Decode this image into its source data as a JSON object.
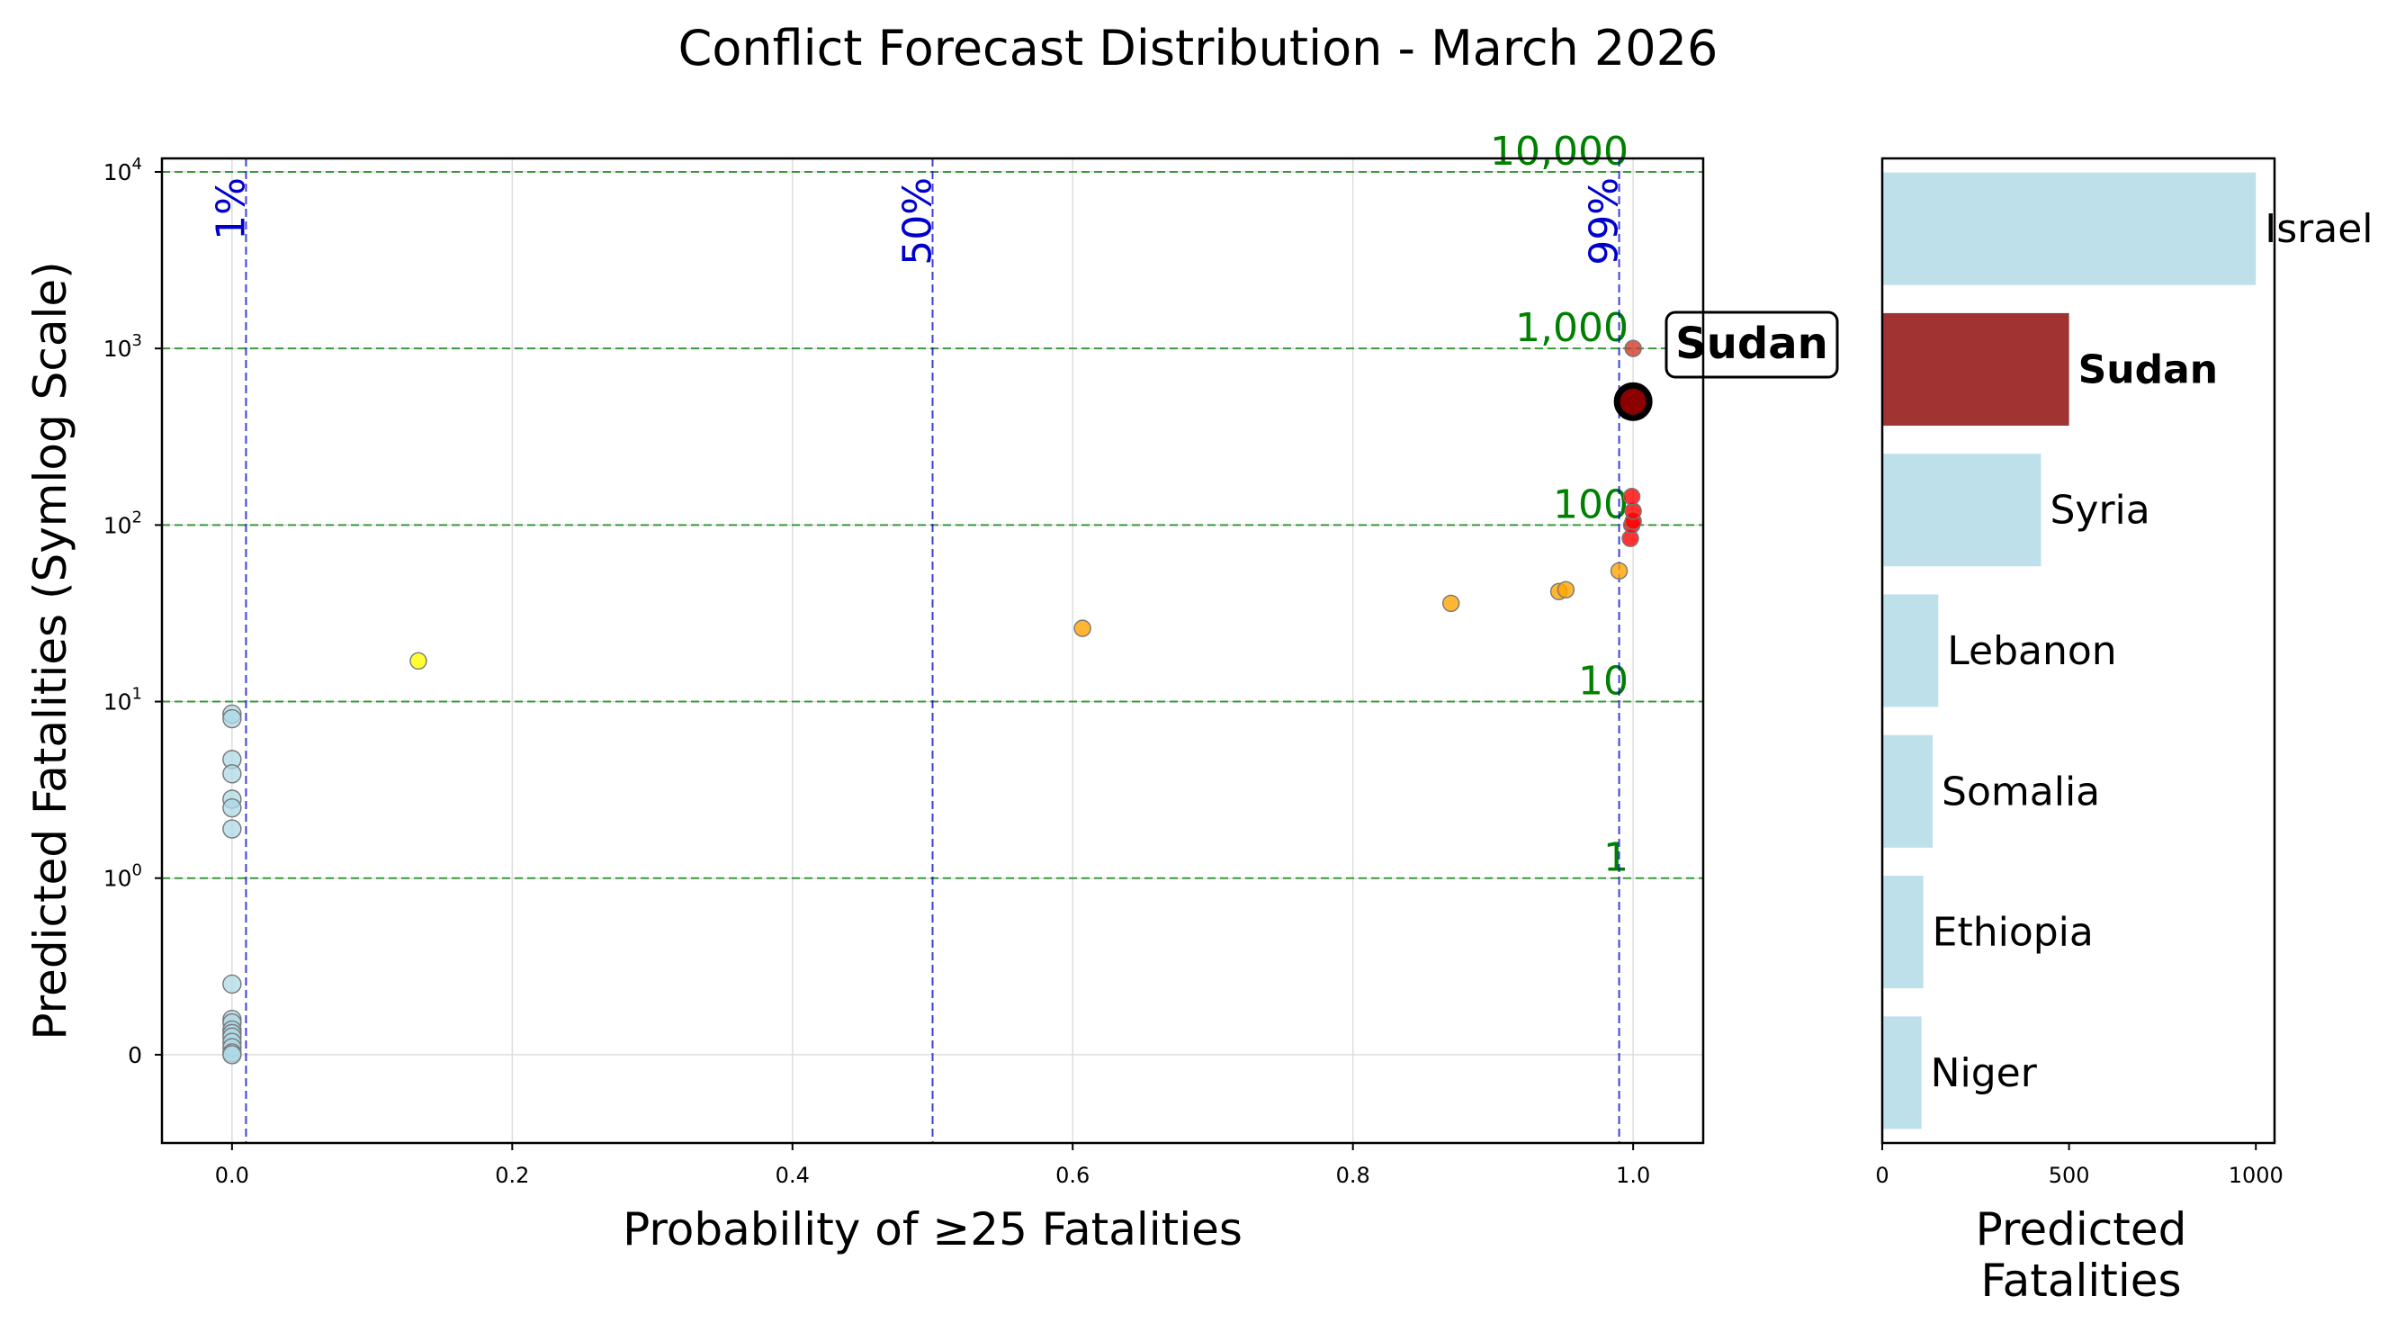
{
  "chart_data": [
    {
      "type": "scatter",
      "title": "Conflict Forecast Distribution - March 2026",
      "xlabel": "Probability of ≥25 Fatalities",
      "ylabel": "Predicted Fatalities (Symlog Scale)",
      "yscale": "symlog",
      "xlim": [
        -0.05,
        1.05
      ],
      "ylim": [
        -0.5,
        10000
      ],
      "x_ticks": [
        0.0,
        0.2,
        0.4,
        0.6,
        0.8,
        1.0
      ],
      "x_tick_labels": [
        "0.0",
        "0.2",
        "0.4",
        "0.6",
        "0.8",
        "1.0"
      ],
      "y_tick_labels": [
        {
          "value": 0,
          "base": "0",
          "exp": ""
        },
        {
          "value": 1,
          "base": "10",
          "exp": "0"
        },
        {
          "value": 10,
          "base": "10",
          "exp": "1"
        },
        {
          "value": 100,
          "base": "10",
          "exp": "2"
        },
        {
          "value": 1000,
          "base": "10",
          "exp": "3"
        },
        {
          "value": 10000,
          "base": "10",
          "exp": "4"
        }
      ],
      "grid": true,
      "vertical_reference_lines": [
        {
          "x": 0.01,
          "label": "1%"
        },
        {
          "x": 0.5,
          "label": "50%"
        },
        {
          "x": 0.99,
          "label": "99%"
        }
      ],
      "horizontal_reference_lines": [
        {
          "y": 1,
          "label": "1"
        },
        {
          "y": 10,
          "label": "10"
        },
        {
          "y": 100,
          "label": "100"
        },
        {
          "y": 1000,
          "label": "1,000"
        },
        {
          "y": 10000,
          "label": "10,000"
        }
      ],
      "points": [
        {
          "x": 0.0,
          "y": 8.5,
          "group": "low"
        },
        {
          "x": 0.0,
          "y": 8.0,
          "group": "low"
        },
        {
          "x": 0.0,
          "y": 4.7,
          "group": "low"
        },
        {
          "x": 0.0,
          "y": 3.9,
          "group": "low"
        },
        {
          "x": 0.0,
          "y": 2.8,
          "group": "low"
        },
        {
          "x": 0.0,
          "y": 2.5,
          "group": "low"
        },
        {
          "x": 0.0,
          "y": 1.9,
          "group": "low"
        },
        {
          "x": 0.0,
          "y": 0.4,
          "group": "low"
        },
        {
          "x": 0.0,
          "y": 0.2,
          "group": "low"
        },
        {
          "x": 0.0,
          "y": 0.18,
          "group": "low"
        },
        {
          "x": 0.0,
          "y": 0.14,
          "group": "low"
        },
        {
          "x": 0.0,
          "y": 0.12,
          "group": "low"
        },
        {
          "x": 0.0,
          "y": 0.1,
          "group": "low"
        },
        {
          "x": 0.0,
          "y": 0.07,
          "group": "low"
        },
        {
          "x": 0.0,
          "y": 0.04,
          "group": "low"
        },
        {
          "x": 0.0,
          "y": 0.01,
          "group": "low"
        },
        {
          "x": 0.0,
          "y": 0.0,
          "group": "low"
        },
        {
          "x": 0.133,
          "y": 17,
          "group": "elevated"
        },
        {
          "x": 0.607,
          "y": 26,
          "group": "high"
        },
        {
          "x": 0.87,
          "y": 36,
          "group": "high"
        },
        {
          "x": 0.947,
          "y": 42,
          "group": "high"
        },
        {
          "x": 0.952,
          "y": 43,
          "group": "high"
        },
        {
          "x": 0.99,
          "y": 55,
          "group": "high"
        },
        {
          "x": 0.998,
          "y": 84,
          "group": "very_high"
        },
        {
          "x": 0.999,
          "y": 100,
          "group": "very_high"
        },
        {
          "x": 1.0,
          "y": 105,
          "group": "very_high"
        },
        {
          "x": 1.0,
          "y": 120,
          "group": "very_high"
        },
        {
          "x": 0.999,
          "y": 145,
          "group": "very_high"
        },
        {
          "x": 1.0,
          "y": 1000,
          "group": "extreme"
        }
      ],
      "highlight": {
        "label": "Sudan",
        "x": 1.0,
        "y": 500
      }
    },
    {
      "type": "bar",
      "orientation": "horizontal",
      "xlabel": "Predicted\nFatalities",
      "xlim": [
        0,
        1050
      ],
      "x_ticks": [
        0,
        500,
        1000
      ],
      "x_tick_labels": [
        "0",
        "500",
        "1000"
      ],
      "categories": [
        "Israel",
        "Sudan",
        "Syria",
        "Lebanon",
        "Somalia",
        "Ethiopia",
        "Niger"
      ],
      "values": [
        1000,
        500,
        425,
        150,
        135,
        110,
        105
      ],
      "highlight": "Sudan"
    }
  ],
  "colors": {
    "low": "#add8e6",
    "elevated": "#ffff00",
    "high": "#ffa500",
    "very_high": "#ff0000",
    "extreme": "#d03a2a",
    "highlight": "#8b0000",
    "bar": "#add8e6",
    "bar_highlight": "#8b0000",
    "probability_lines": "#0000cc",
    "fatality_lines": "#008000"
  }
}
